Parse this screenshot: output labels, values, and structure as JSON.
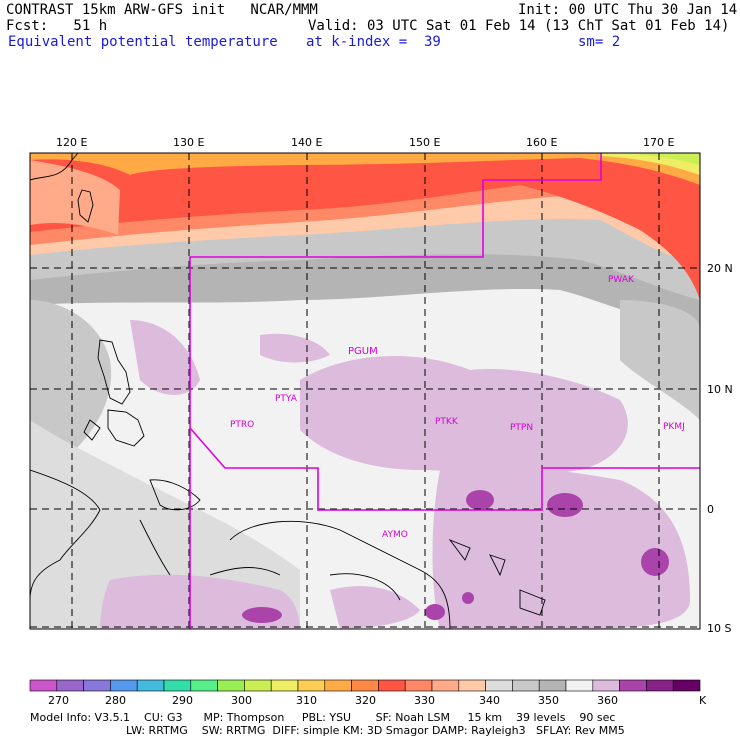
{
  "header": {
    "title": "CONTRAST 15km ARW-GFS init   NCAR/MMM",
    "init": "Init: 00 UTC Thu 30 Jan 14",
    "fcst": "Fcst:   51 h",
    "valid": "Valid: 03 UTC Sat 01 Feb 14 (13 ChT Sat 01 Feb 14)",
    "field": "Equivalent potential temperature",
    "level": "at k-index =  39",
    "smooth": "sm= 2"
  },
  "map": {
    "lon_labels": [
      "120 E",
      "130 E",
      "140 E",
      "150 E",
      "160 E",
      "170 E"
    ],
    "lat_labels": [
      "20 N",
      "10 N",
      "0",
      "10 S"
    ],
    "stations": [
      "PGUM",
      "PTYA",
      "PTRO",
      "PTKK",
      "PTPN",
      "PKMJ",
      "PWAK",
      "AYMO"
    ]
  },
  "colorbar": {
    "colors": [
      "#cc55cc",
      "#9966cc",
      "#8877dd",
      "#5599ee",
      "#44bbdd",
      "#33ddaa",
      "#55ee88",
      "#99ee55",
      "#ccee55",
      "#eeee66",
      "#ffcc55",
      "#ffaa44",
      "#ff8844",
      "#ff5544",
      "#ff8866",
      "#ffaa88",
      "#ffcaaa",
      "#dddddd",
      "#c8c8c8",
      "#b4b4b4",
      "#f2f2f2",
      "#ddbbdd",
      "#aa44aa",
      "#882288",
      "#660066"
    ],
    "labels": [
      "270",
      "280",
      "290",
      "300",
      "310",
      "320",
      "330",
      "340",
      "350",
      "360"
    ],
    "unit": "K"
  },
  "model_info": {
    "line1": "Model Info: V3.5.1    CU: G3      MP: Thompson     PBL: YSU       SF: Noah LSM     15 km    39 levels    90 sec",
    "line2": "LW: RRTMG    SW: RRTMG  DIFF: simple KM: 3D Smagor DAMP: Rayleigh3   SFLAY: Rev MM5"
  }
}
